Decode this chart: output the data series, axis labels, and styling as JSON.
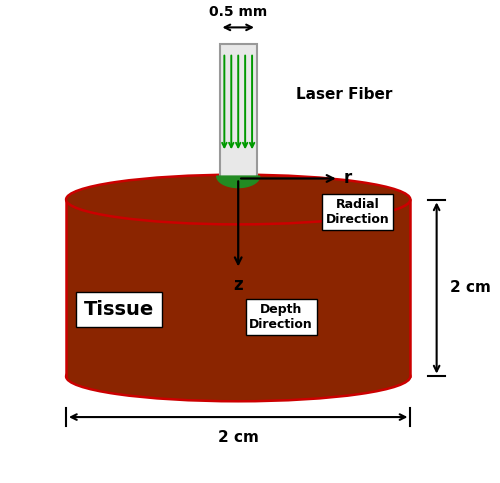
{
  "background_color": "#ffffff",
  "cylinder_color": "#8B2500",
  "cylinder_edge_color": "#cc0000",
  "fiber_rect_color": "#e8e8e8",
  "fiber_rect_edge": "#999999",
  "fiber_beam_color": "#009900",
  "fiber_tip_color": "#228B22",
  "tissue_label": "Tissue",
  "laser_label": "Laser Fiber",
  "radial_label": "Radial\nDirection",
  "depth_label": "Depth\nDirection",
  "dim_05mm": "0.5 mm",
  "dim_2cm_h": "2 cm",
  "dim_2cm_w": "2 cm",
  "axis_r": "r",
  "axis_z": "z",
  "figsize": [
    5.0,
    4.83
  ],
  "dpi": 100
}
